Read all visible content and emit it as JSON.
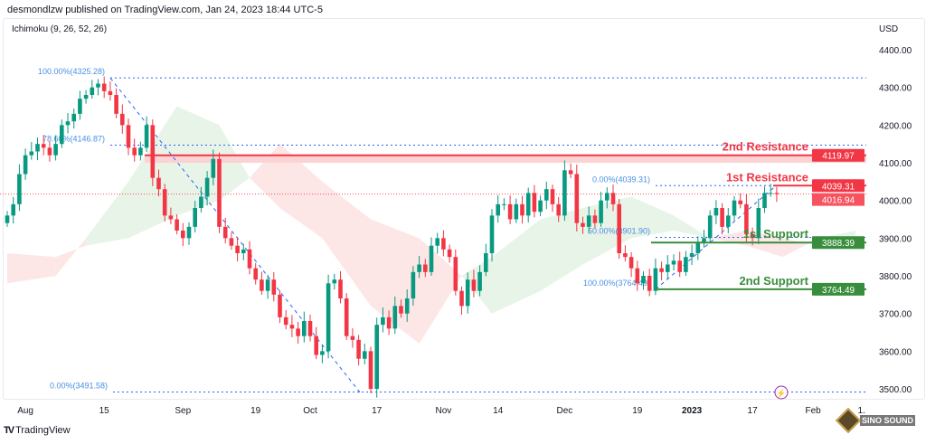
{
  "header": {
    "publisher": "desmondlzw published on TradingView.com, Jan 24, 2023 18:44 UTC-5",
    "indicator": "Ichimoku (9, 26, 52, 26)",
    "currency": "USD"
  },
  "footer": {
    "brand": "TradingView",
    "watermark": "SINO SOUND"
  },
  "chart_data": {
    "type": "candlestick",
    "ylim": [
      3450,
      4450
    ],
    "yticks": [
      4400,
      4300,
      4200,
      4100,
      4000,
      3900,
      3800,
      3700,
      3600,
      3500
    ],
    "ytick_labels": [
      "4400.00",
      "4300.00",
      "4200.00",
      "4100.00",
      "4000.00",
      "3900.00",
      "3800.00",
      "3700.00",
      "3600.00",
      "3500.00"
    ],
    "xticks": [
      {
        "label": "Aug",
        "i": 3,
        "bold": false
      },
      {
        "label": "15",
        "i": 16,
        "bold": false
      },
      {
        "label": "Sep",
        "i": 29,
        "bold": false
      },
      {
        "label": "19",
        "i": 41,
        "bold": false
      },
      {
        "label": "Oct",
        "i": 50,
        "bold": false
      },
      {
        "label": "17",
        "i": 61,
        "bold": false
      },
      {
        "label": "Nov",
        "i": 72,
        "bold": false
      },
      {
        "label": "14",
        "i": 81,
        "bold": false
      },
      {
        "label": "Dec",
        "i": 92,
        "bold": false
      },
      {
        "label": "19",
        "i": 104,
        "bold": false
      },
      {
        "label": "2023",
        "i": 113,
        "bold": true
      },
      {
        "label": "17",
        "i": 123,
        "bold": false
      },
      {
        "label": "Feb",
        "i": 133,
        "bold": false
      },
      {
        "label": "1.",
        "i": 141,
        "bold": false
      }
    ],
    "closes": [
      3960,
      3990,
      4070,
      4120,
      4130,
      4150,
      4140,
      4120,
      4150,
      4200,
      4210,
      4230,
      4270,
      4280,
      4300,
      4310,
      4290,
      4280,
      4230,
      4200,
      4140,
      4120,
      4140,
      4200,
      4060,
      4030,
      3960,
      3950,
      3920,
      3900,
      3930,
      3980,
      4010,
      4060,
      4110,
      3930,
      3900,
      3880,
      3860,
      3870,
      3820,
      3790,
      3760,
      3790,
      3750,
      3690,
      3670,
      3660,
      3640,
      3680,
      3640,
      3590,
      3600,
      3780,
      3790,
      3740,
      3640,
      3630,
      3580,
      3600,
      3500,
      3670,
      3690,
      3660,
      3720,
      3700,
      3740,
      3810,
      3830,
      3810,
      3880,
      3900,
      3870,
      3850,
      3760,
      3720,
      3790,
      3760,
      3810,
      3860,
      3960,
      3990,
      3990,
      3950,
      3990,
      3960,
      4020,
      3970,
      4000,
      4030,
      3990,
      3960,
      4080,
      4070,
      3940,
      3930,
      3960,
      3940,
      4000,
      4020,
      3990,
      3860,
      3850,
      3820,
      3780,
      3800,
      3760,
      3820,
      3810,
      3830,
      3840,
      3810,
      3850,
      3860,
      3890,
      3900,
      3960,
      3980,
      3930,
      3960,
      4000,
      3990,
      3910,
      3900,
      3980,
      4020,
      4020,
      4017
    ],
    "ichimoku_cloud": [
      [
        0,
        3780,
        3860
      ],
      [
        8,
        3800,
        3850
      ],
      [
        13,
        3900,
        3880
      ],
      [
        20,
        4050,
        3900
      ],
      [
        28,
        4250,
        3960
      ],
      [
        35,
        4200,
        4000
      ],
      [
        40,
        4060,
        4060
      ],
      [
        45,
        3980,
        4150
      ],
      [
        52,
        3900,
        4050
      ],
      [
        60,
        3720,
        3950
      ],
      [
        68,
        3620,
        3900
      ],
      [
        75,
        3800,
        3800
      ],
      [
        80,
        3850,
        3700
      ],
      [
        88,
        3950,
        3760
      ],
      [
        95,
        3980,
        3830
      ],
      [
        103,
        4010,
        3900
      ],
      [
        110,
        3960,
        3920
      ],
      [
        116,
        3900,
        3900
      ],
      [
        122,
        3880,
        3920
      ],
      [
        128,
        3850,
        3900
      ],
      [
        134,
        3900,
        3880
      ],
      [
        140,
        3920,
        3890
      ]
    ],
    "fib_left": [
      {
        "label": "100.00%(4325.28)",
        "value": 4325.28
      },
      {
        "label": "78.60%(4146.87)",
        "value": 4146.87
      },
      {
        "label": "0.00%(3491.58)",
        "value": 3491.58
      }
    ],
    "fib_right": [
      {
        "label": "0.00%(4039.31)",
        "value": 4039.31
      },
      {
        "label": "50.00%(3901.90)",
        "value": 3901.9
      },
      {
        "label": "100.00%(3764.49)",
        "value": 3764.49
      }
    ],
    "levels": [
      {
        "name": "2nd Resistance",
        "value": 4119.97,
        "tag": "4119.97",
        "color": "#f23645"
      },
      {
        "name": "1st Resistance",
        "value": 4039.31,
        "tag": "4039.31",
        "color": "#f23645"
      },
      {
        "name": "1st Support",
        "value": 3888.39,
        "tag": "3888.39",
        "color": "#388e3c"
      },
      {
        "name": "2nd Support",
        "value": 3764.49,
        "tag": "3764.49",
        "color": "#388e3c"
      }
    ],
    "last_price": {
      "value": 4016.94,
      "tag": "4016.94",
      "color": "#f7525f"
    },
    "colors": {
      "up": "#089981",
      "down": "#f23645",
      "fib": "#2962ff",
      "cloud_up": "#e3f2e3",
      "cloud_down": "#fde2e2"
    }
  }
}
